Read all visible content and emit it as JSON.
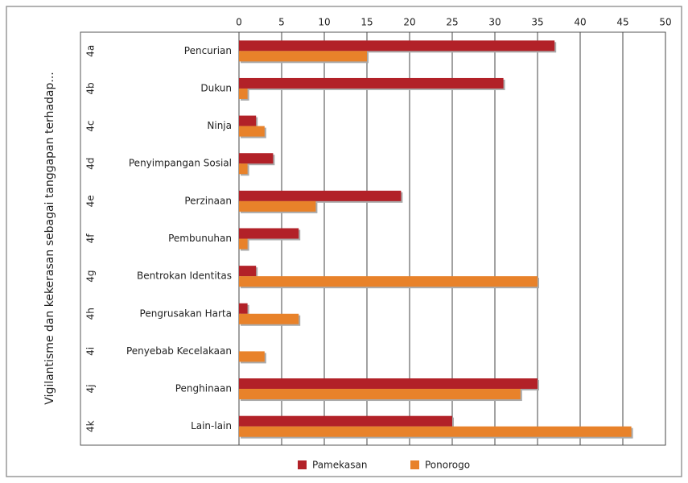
{
  "chart_data": {
    "type": "bar",
    "orientation": "horizontal",
    "ylabel": "Vigilantisme dan kekerasan sebagai tanggapan terhadap...",
    "codes": [
      "4a",
      "4b",
      "4c",
      "4d",
      "4e",
      "4f",
      "4g",
      "4h",
      "4i",
      "4j",
      "4k"
    ],
    "categories": [
      "Pencurian",
      "Dukun",
      "Ninja",
      "Penyimpangan Sosial",
      "Perzinaan",
      "Pembunuhan",
      "Bentrokan Identitas",
      "Pengrusakan Harta",
      "Penyebab Kecelakaan",
      "Penghinaan",
      "Lain-lain"
    ],
    "series": [
      {
        "name": "Pamekasan",
        "color": "#b22128",
        "values": [
          37,
          31,
          2,
          4,
          19,
          7,
          2,
          1,
          0,
          35,
          25
        ]
      },
      {
        "name": "Ponorogo",
        "color": "#e8822a",
        "values": [
          15,
          1,
          3,
          1,
          9,
          1,
          35,
          7,
          3,
          33,
          46
        ]
      }
    ],
    "xlim": [
      0,
      50
    ],
    "xticks": [
      0,
      5,
      10,
      15,
      20,
      25,
      30,
      35,
      40,
      45,
      50
    ],
    "grid": true,
    "legend": "bottom"
  }
}
